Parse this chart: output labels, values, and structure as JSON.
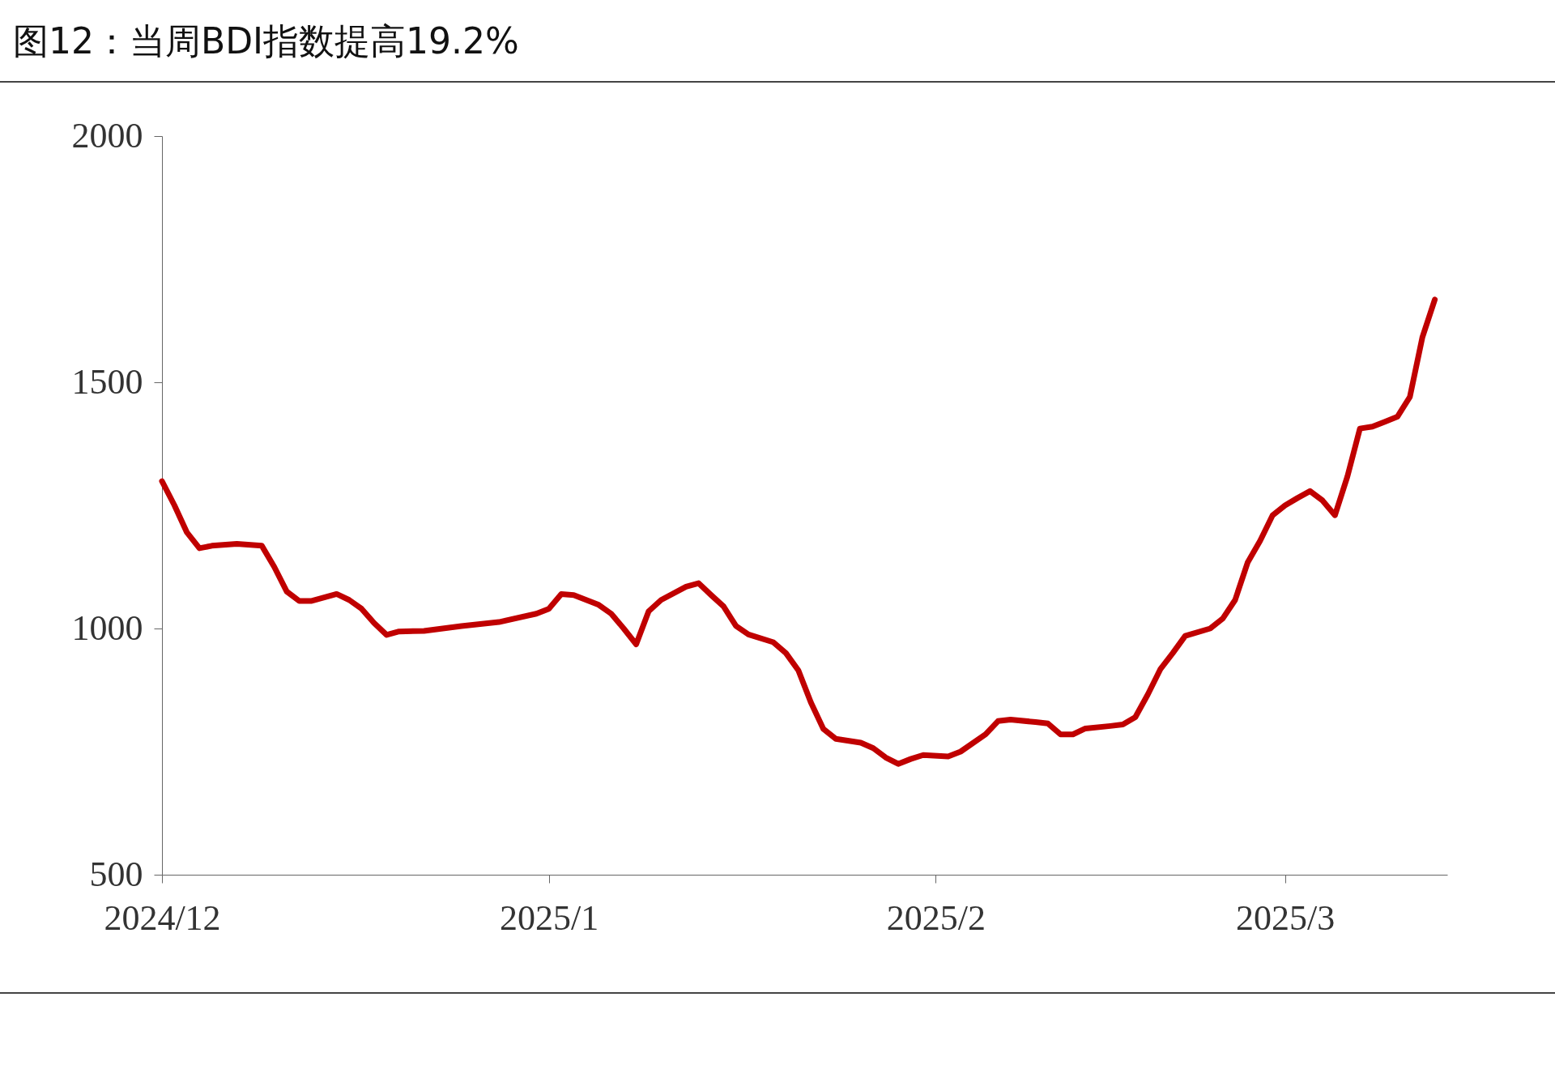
{
  "chart_data": {
    "type": "line",
    "title": "图12：当周BDI指数提高19.2%",
    "x": [
      "2024-12-01",
      "2024-12-02",
      "2024-12-03",
      "2024-12-04",
      "2024-12-05",
      "2024-12-07",
      "2024-12-09",
      "2024-12-10",
      "2024-12-11",
      "2024-12-12",
      "2024-12-13",
      "2024-12-15",
      "2024-12-16",
      "2024-12-17",
      "2024-12-18",
      "2024-12-19",
      "2024-12-20",
      "2024-12-22",
      "2024-12-25",
      "2024-12-28",
      "2024-12-31",
      "2025-01-01",
      "2025-01-02",
      "2025-01-03",
      "2025-01-05",
      "2025-01-06",
      "2025-01-07",
      "2025-01-08",
      "2025-01-09",
      "2025-01-10",
      "2025-01-12",
      "2025-01-13",
      "2025-01-14",
      "2025-01-15",
      "2025-01-16",
      "2025-01-17",
      "2025-01-19",
      "2025-01-20",
      "2025-01-21",
      "2025-01-22",
      "2025-01-23",
      "2025-01-24",
      "2025-01-26",
      "2025-01-27",
      "2025-01-28",
      "2025-01-29",
      "2025-01-30",
      "2025-01-31",
      "2025-02-02",
      "2025-02-03",
      "2025-02-05",
      "2025-02-06",
      "2025-02-07",
      "2025-02-09",
      "2025-02-10",
      "2025-02-11",
      "2025-02-12",
      "2025-02-13",
      "2025-02-15",
      "2025-02-16",
      "2025-02-17",
      "2025-02-18",
      "2025-02-19",
      "2025-02-20",
      "2025-02-21",
      "2025-02-23",
      "2025-02-24",
      "2025-02-25",
      "2025-02-26",
      "2025-02-27",
      "2025-02-28",
      "2025-03-01",
      "2025-03-02",
      "2025-03-03",
      "2025-03-04",
      "2025-03-05",
      "2025-03-06",
      "2025-03-07",
      "2025-03-08",
      "2025-03-09",
      "2025-03-10",
      "2025-03-11",
      "2025-03-12",
      "2025-03-13"
    ],
    "series": [
      {
        "color": "#c00000",
        "values": [
          1299,
          1250,
          1195,
          1163,
          1168,
          1172,
          1168,
          1125,
          1075,
          1056,
          1056,
          1070,
          1058,
          1040,
          1011,
          987,
          994,
          995,
          1005,
          1013,
          1030,
          1040,
          1070,
          1068,
          1048,
          1030,
          1000,
          968,
          1035,
          1058,
          1085,
          1092,
          1068,
          1045,
          1005,
          988,
          972,
          950,
          915,
          850,
          796,
          776,
          768,
          757,
          738,
          725,
          735,
          743,
          740,
          750,
          785,
          812,
          815,
          810,
          807,
          785,
          785,
          797,
          802,
          805,
          820,
          866,
          917,
          950,
          985,
          1000,
          1020,
          1058,
          1134,
          1178,
          1230,
          1250,
          1265,
          1279,
          1260,
          1230,
          1309,
          1406,
          1410,
          1420,
          1430,
          1470,
          1591,
          1668
        ]
      }
    ],
    "xlim": [
      "2024-12-01",
      "2025-03-14"
    ],
    "xticks": [
      {
        "value": "2024-12-01",
        "label": "2024/12"
      },
      {
        "value": "2025-01-01",
        "label": "2025/1"
      },
      {
        "value": "2025-02-01",
        "label": "2025/2"
      },
      {
        "value": "2025-03-01",
        "label": "2025/3"
      }
    ],
    "ylim": [
      500,
      2000
    ],
    "yticks": [
      500,
      1000,
      1500,
      2000
    ],
    "grid": false,
    "legend": false
  }
}
